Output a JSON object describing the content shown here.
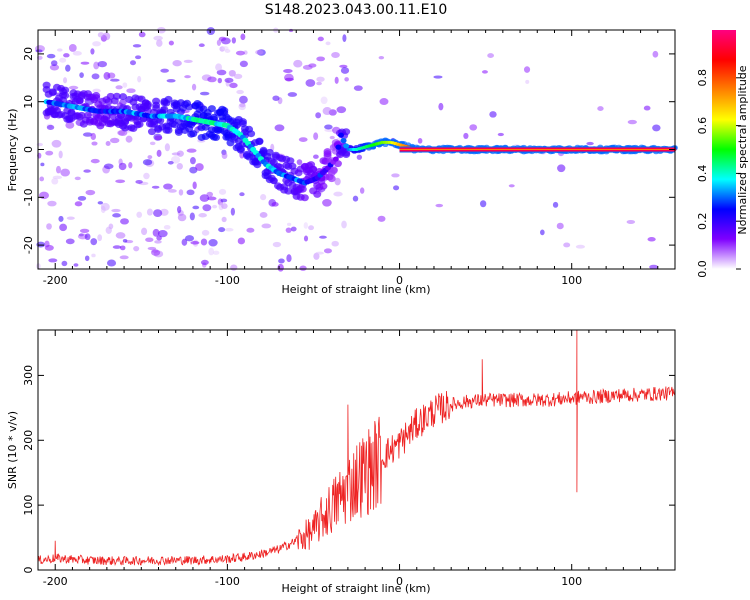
{
  "title": "S148.2023.043.00.11.E10",
  "chart_data": [
    {
      "type": "heatmap",
      "name": "spectrogram",
      "xlabel": "Height of straight line (km)",
      "ylabel": "Frequency (Hz)",
      "xlim": [
        -210,
        160
      ],
      "ylim": [
        -25,
        25
      ],
      "xticks": [
        -200,
        -100,
        0,
        100
      ],
      "yticks": [
        -20,
        -10,
        0,
        10,
        20
      ],
      "colorbar": {
        "label": "Normalized spectral amplitude",
        "range": [
          0,
          1
        ],
        "ticks": [
          0.0,
          0.2,
          0.4,
          0.6,
          0.8
        ],
        "colormap": [
          "#ffffff",
          "#7f00ff",
          "#0000ff",
          "#00ffff",
          "#00ff00",
          "#ffff00",
          "#ff8000",
          "#ff0000",
          "#ff0080"
        ]
      },
      "ridge": {
        "x": [
          -205,
          -190,
          -175,
          -160,
          -145,
          -130,
          -115,
          -100,
          -92,
          -85,
          -78,
          -70,
          -62,
          -55,
          -48,
          -42,
          -37,
          -34,
          -30,
          -25,
          -20,
          -15,
          -10,
          -5,
          0,
          10,
          20,
          40,
          60,
          80,
          100,
          120,
          140,
          160
        ],
        "y": [
          10,
          9,
          8,
          8,
          7,
          7,
          6,
          5,
          3,
          0,
          -3,
          -5,
          -6,
          -7,
          -6,
          -4,
          -2,
          3,
          0,
          0,
          0.5,
          1,
          1.5,
          1.5,
          1,
          0,
          0,
          0,
          0,
          0,
          0,
          0,
          0,
          0
        ],
        "amplitude": [
          0.3,
          0.3,
          0.25,
          0.3,
          0.3,
          0.35,
          0.4,
          0.4,
          0.35,
          0.35,
          0.35,
          0.3,
          0.3,
          0.25,
          0.25,
          0.2,
          0.15,
          0.3,
          0.3,
          0.4,
          0.45,
          0.5,
          0.55,
          0.6,
          0.7,
          0.85,
          0.9,
          0.95,
          0.95,
          0.95,
          0.95,
          0.95,
          0.95,
          0.95
        ]
      }
    },
    {
      "type": "line",
      "name": "snr",
      "xlabel": "Height of straight line (km)",
      "ylabel": "SNR (10 * v/v)",
      "xlim": [
        -210,
        160
      ],
      "ylim": [
        0,
        370
      ],
      "xticks": [
        -200,
        -100,
        0,
        100
      ],
      "yticks": [
        0,
        100,
        200,
        300
      ],
      "color": "#ee2222",
      "series": [
        {
          "x": [
            -210,
            -200,
            -180,
            -160,
            -140,
            -120,
            -100,
            -90,
            -80,
            -70,
            -60,
            -50,
            -45,
            -40,
            -35,
            -30,
            -25,
            -20,
            -15,
            -10,
            -5,
            0,
            5,
            10,
            20,
            30,
            40,
            50,
            60,
            70,
            80,
            90,
            100,
            103,
            106,
            110,
            120,
            130,
            140,
            150,
            160
          ],
          "values": [
            15,
            18,
            15,
            14,
            15,
            15,
            17,
            20,
            25,
            32,
            45,
            60,
            80,
            95,
            110,
            125,
            140,
            150,
            160,
            175,
            185,
            195,
            210,
            225,
            245,
            255,
            260,
            262,
            262,
            262,
            262,
            263,
            265,
            265,
            268,
            266,
            268,
            270,
            270,
            272,
            272
          ]
        }
      ],
      "spikes": [
        {
          "x": -200,
          "value": 45
        },
        {
          "x": -30,
          "value": 255
        },
        {
          "x": 48,
          "value": 325
        },
        {
          "x": 103,
          "value": 370
        },
        {
          "x": 103,
          "value": 120
        }
      ]
    }
  ]
}
